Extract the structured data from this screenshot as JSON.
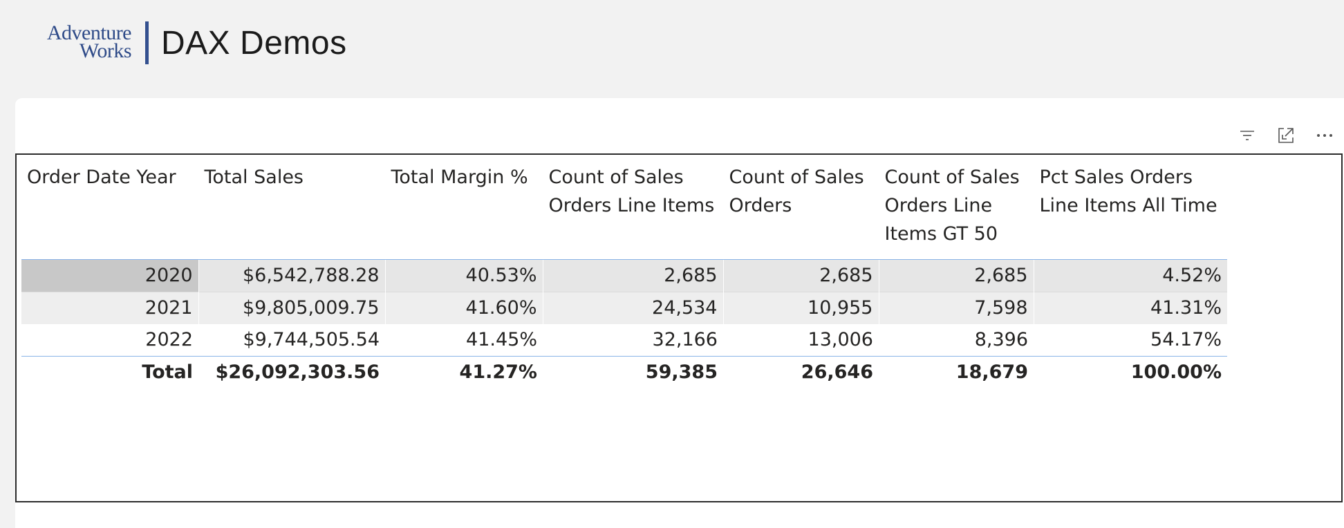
{
  "header": {
    "logo_line1": "Adventure",
    "logo_line2": "Works",
    "title": "DAX Demos"
  },
  "toolbar": {
    "icons": [
      "filter-icon",
      "focus-mode-icon",
      "more-options-icon"
    ]
  },
  "matrix": {
    "columns": [
      "Order Date Year",
      "Total Sales",
      "Total Margin %",
      "Count of Sales Orders Line Items",
      "Count of Sales Orders",
      "Count of Sales Orders Line Items GT 50",
      "Pct Sales Orders Line Items All Time"
    ],
    "rows": [
      [
        "2020",
        "$6,542,788.28",
        "40.53%",
        "2,685",
        "2,685",
        "2,685",
        "4.52%"
      ],
      [
        "2021",
        "$9,805,009.75",
        "41.60%",
        "24,534",
        "10,955",
        "7,598",
        "41.31%"
      ],
      [
        "2022",
        "$9,744,505.54",
        "41.45%",
        "32,166",
        "13,006",
        "8,396",
        "54.17%"
      ]
    ],
    "total": [
      "Total",
      "$26,092,303.56",
      "41.27%",
      "59,385",
      "26,646",
      "18,679",
      "100.00%"
    ]
  },
  "colors": {
    "brand_blue": "#2e4a88",
    "header_rule": "#8ab4e8",
    "selected_row_header": "#c8c8c8"
  }
}
